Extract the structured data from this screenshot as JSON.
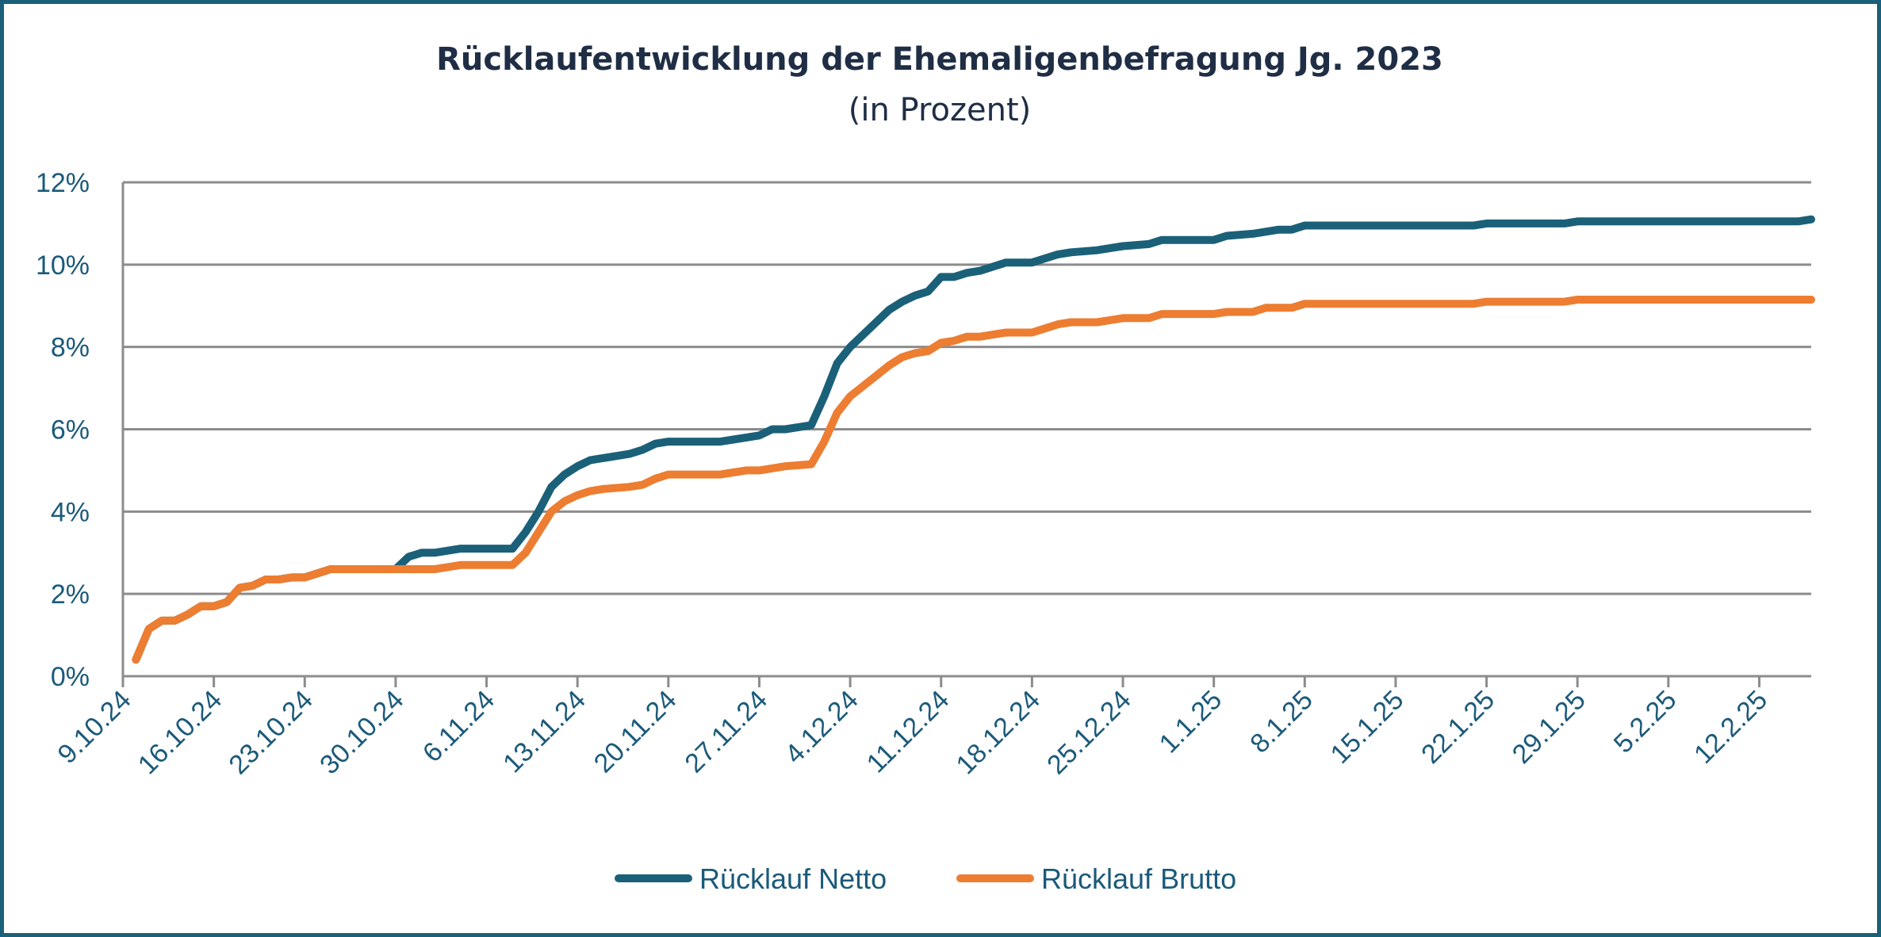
{
  "chart_data": {
    "type": "line",
    "title": "Rücklaufentwicklung der Ehemaligenbefragung Jg. 2023",
    "subtitle": "(in Prozent)",
    "xlabel": "",
    "ylabel": "",
    "ylim": [
      0,
      12
    ],
    "yticks": [
      0,
      2,
      4,
      6,
      8,
      10,
      12
    ],
    "ytick_labels": [
      "0%",
      "2%",
      "4%",
      "6%",
      "8%",
      "10%",
      "12%"
    ],
    "x_range": [
      "2024-10-09",
      "2025-02-16"
    ],
    "xtick_labels": [
      "9.10.24",
      "16.10.24",
      "23.10.24",
      "30.10.24",
      "6.11.24",
      "13.11.24",
      "20.11.24",
      "27.11.24",
      "4.12.24",
      "11.12.24",
      "18.12.24",
      "25.12.24",
      "1.1.25",
      "8.1.25",
      "15.1.25",
      "22.1.25",
      "29.1.25",
      "5.2.25",
      "12.2.25"
    ],
    "xtick_dates": [
      "2024-10-09",
      "2024-10-16",
      "2024-10-23",
      "2024-10-30",
      "2024-11-06",
      "2024-11-13",
      "2024-11-20",
      "2024-11-27",
      "2024-12-04",
      "2024-12-11",
      "2024-12-18",
      "2024-12-25",
      "2025-01-01",
      "2025-01-08",
      "2025-01-15",
      "2025-01-22",
      "2025-01-29",
      "2025-02-05",
      "2025-02-12"
    ],
    "grid": true,
    "legend_position": "bottom",
    "series": [
      {
        "name": "Rücklauf Netto",
        "color": "#1b6079",
        "points": [
          [
            "2024-10-10",
            0.4
          ],
          [
            "2024-10-11",
            1.15
          ],
          [
            "2024-10-12",
            1.35
          ],
          [
            "2024-10-13",
            1.35
          ],
          [
            "2024-10-14",
            1.5
          ],
          [
            "2024-10-15",
            1.7
          ],
          [
            "2024-10-16",
            1.7
          ],
          [
            "2024-10-17",
            1.8
          ],
          [
            "2024-10-18",
            2.15
          ],
          [
            "2024-10-19",
            2.2
          ],
          [
            "2024-10-20",
            2.35
          ],
          [
            "2024-10-21",
            2.35
          ],
          [
            "2024-10-22",
            2.4
          ],
          [
            "2024-10-23",
            2.4
          ],
          [
            "2024-10-24",
            2.5
          ],
          [
            "2024-10-25",
            2.6
          ],
          [
            "2024-10-30",
            2.6
          ],
          [
            "2024-10-31",
            2.9
          ],
          [
            "2024-11-01",
            3.0
          ],
          [
            "2024-11-02",
            3.0
          ],
          [
            "2024-11-03",
            3.05
          ],
          [
            "2024-11-04",
            3.1
          ],
          [
            "2024-11-08",
            3.1
          ],
          [
            "2024-11-09",
            3.5
          ],
          [
            "2024-11-10",
            4.0
          ],
          [
            "2024-11-11",
            4.6
          ],
          [
            "2024-11-12",
            4.9
          ],
          [
            "2024-11-13",
            5.1
          ],
          [
            "2024-11-14",
            5.25
          ],
          [
            "2024-11-15",
            5.3
          ],
          [
            "2024-11-17",
            5.4
          ],
          [
            "2024-11-18",
            5.5
          ],
          [
            "2024-11-19",
            5.65
          ],
          [
            "2024-11-20",
            5.7
          ],
          [
            "2024-11-24",
            5.7
          ],
          [
            "2024-11-25",
            5.75
          ],
          [
            "2024-11-26",
            5.8
          ],
          [
            "2024-11-27",
            5.85
          ],
          [
            "2024-11-28",
            6.0
          ],
          [
            "2024-11-29",
            6.0
          ],
          [
            "2024-11-30",
            6.05
          ],
          [
            "2024-12-01",
            6.1
          ],
          [
            "2024-12-02",
            6.8
          ],
          [
            "2024-12-03",
            7.6
          ],
          [
            "2024-12-04",
            8.0
          ],
          [
            "2024-12-05",
            8.3
          ],
          [
            "2024-12-06",
            8.6
          ],
          [
            "2024-12-07",
            8.9
          ],
          [
            "2024-12-08",
            9.1
          ],
          [
            "2024-12-09",
            9.25
          ],
          [
            "2024-12-10",
            9.35
          ],
          [
            "2024-12-11",
            9.7
          ],
          [
            "2024-12-12",
            9.7
          ],
          [
            "2024-12-13",
            9.8
          ],
          [
            "2024-12-14",
            9.85
          ],
          [
            "2024-12-15",
            9.95
          ],
          [
            "2024-12-16",
            10.05
          ],
          [
            "2024-12-18",
            10.05
          ],
          [
            "2024-12-19",
            10.15
          ],
          [
            "2024-12-20",
            10.25
          ],
          [
            "2024-12-21",
            10.3
          ],
          [
            "2024-12-23",
            10.35
          ],
          [
            "2024-12-24",
            10.4
          ],
          [
            "2024-12-25",
            10.45
          ],
          [
            "2024-12-27",
            10.5
          ],
          [
            "2024-12-28",
            10.6
          ],
          [
            "2025-01-01",
            10.6
          ],
          [
            "2025-01-02",
            10.7
          ],
          [
            "2025-01-04",
            10.75
          ],
          [
            "2025-01-05",
            10.8
          ],
          [
            "2025-01-06",
            10.85
          ],
          [
            "2025-01-07",
            10.85
          ],
          [
            "2025-01-08",
            10.95
          ],
          [
            "2025-01-21",
            10.95
          ],
          [
            "2025-01-22",
            11.0
          ],
          [
            "2025-01-28",
            11.0
          ],
          [
            "2025-01-29",
            11.05
          ],
          [
            "2025-02-15",
            11.05
          ],
          [
            "2025-02-16",
            11.1
          ]
        ]
      },
      {
        "name": "Rücklauf Brutto",
        "color": "#ed7d31",
        "points": [
          [
            "2024-10-10",
            0.4
          ],
          [
            "2024-10-11",
            1.15
          ],
          [
            "2024-10-12",
            1.35
          ],
          [
            "2024-10-13",
            1.35
          ],
          [
            "2024-10-14",
            1.5
          ],
          [
            "2024-10-15",
            1.7
          ],
          [
            "2024-10-16",
            1.7
          ],
          [
            "2024-10-17",
            1.8
          ],
          [
            "2024-10-18",
            2.15
          ],
          [
            "2024-10-19",
            2.2
          ],
          [
            "2024-10-20",
            2.35
          ],
          [
            "2024-10-21",
            2.35
          ],
          [
            "2024-10-22",
            2.4
          ],
          [
            "2024-10-23",
            2.4
          ],
          [
            "2024-10-24",
            2.5
          ],
          [
            "2024-10-25",
            2.6
          ],
          [
            "2024-11-02",
            2.6
          ],
          [
            "2024-11-03",
            2.65
          ],
          [
            "2024-11-04",
            2.7
          ],
          [
            "2024-11-08",
            2.7
          ],
          [
            "2024-11-09",
            3.0
          ],
          [
            "2024-11-10",
            3.5
          ],
          [
            "2024-11-11",
            4.0
          ],
          [
            "2024-11-12",
            4.25
          ],
          [
            "2024-11-13",
            4.4
          ],
          [
            "2024-11-14",
            4.5
          ],
          [
            "2024-11-15",
            4.55
          ],
          [
            "2024-11-17",
            4.6
          ],
          [
            "2024-11-18",
            4.65
          ],
          [
            "2024-11-19",
            4.8
          ],
          [
            "2024-11-20",
            4.9
          ],
          [
            "2024-11-24",
            4.9
          ],
          [
            "2024-11-25",
            4.95
          ],
          [
            "2024-11-26",
            5.0
          ],
          [
            "2024-11-27",
            5.0
          ],
          [
            "2024-11-28",
            5.05
          ],
          [
            "2024-11-29",
            5.1
          ],
          [
            "2024-12-01",
            5.15
          ],
          [
            "2024-12-02",
            5.7
          ],
          [
            "2024-12-03",
            6.4
          ],
          [
            "2024-12-04",
            6.8
          ],
          [
            "2024-12-05",
            7.05
          ],
          [
            "2024-12-06",
            7.3
          ],
          [
            "2024-12-07",
            7.55
          ],
          [
            "2024-12-08",
            7.75
          ],
          [
            "2024-12-09",
            7.85
          ],
          [
            "2024-12-10",
            7.9
          ],
          [
            "2024-12-11",
            8.1
          ],
          [
            "2024-12-12",
            8.15
          ],
          [
            "2024-12-13",
            8.25
          ],
          [
            "2024-12-14",
            8.25
          ],
          [
            "2024-12-15",
            8.3
          ],
          [
            "2024-12-16",
            8.35
          ],
          [
            "2024-12-18",
            8.35
          ],
          [
            "2024-12-19",
            8.45
          ],
          [
            "2024-12-20",
            8.55
          ],
          [
            "2024-12-21",
            8.6
          ],
          [
            "2024-12-23",
            8.6
          ],
          [
            "2024-12-24",
            8.65
          ],
          [
            "2024-12-25",
            8.7
          ],
          [
            "2024-12-27",
            8.7
          ],
          [
            "2024-12-28",
            8.8
          ],
          [
            "2025-01-01",
            8.8
          ],
          [
            "2025-01-02",
            8.85
          ],
          [
            "2025-01-04",
            8.85
          ],
          [
            "2025-01-05",
            8.95
          ],
          [
            "2025-01-07",
            8.95
          ],
          [
            "2025-01-08",
            9.05
          ],
          [
            "2025-01-21",
            9.05
          ],
          [
            "2025-01-22",
            9.1
          ],
          [
            "2025-01-28",
            9.1
          ],
          [
            "2025-01-29",
            9.15
          ],
          [
            "2025-02-16",
            9.15
          ]
        ]
      }
    ]
  }
}
